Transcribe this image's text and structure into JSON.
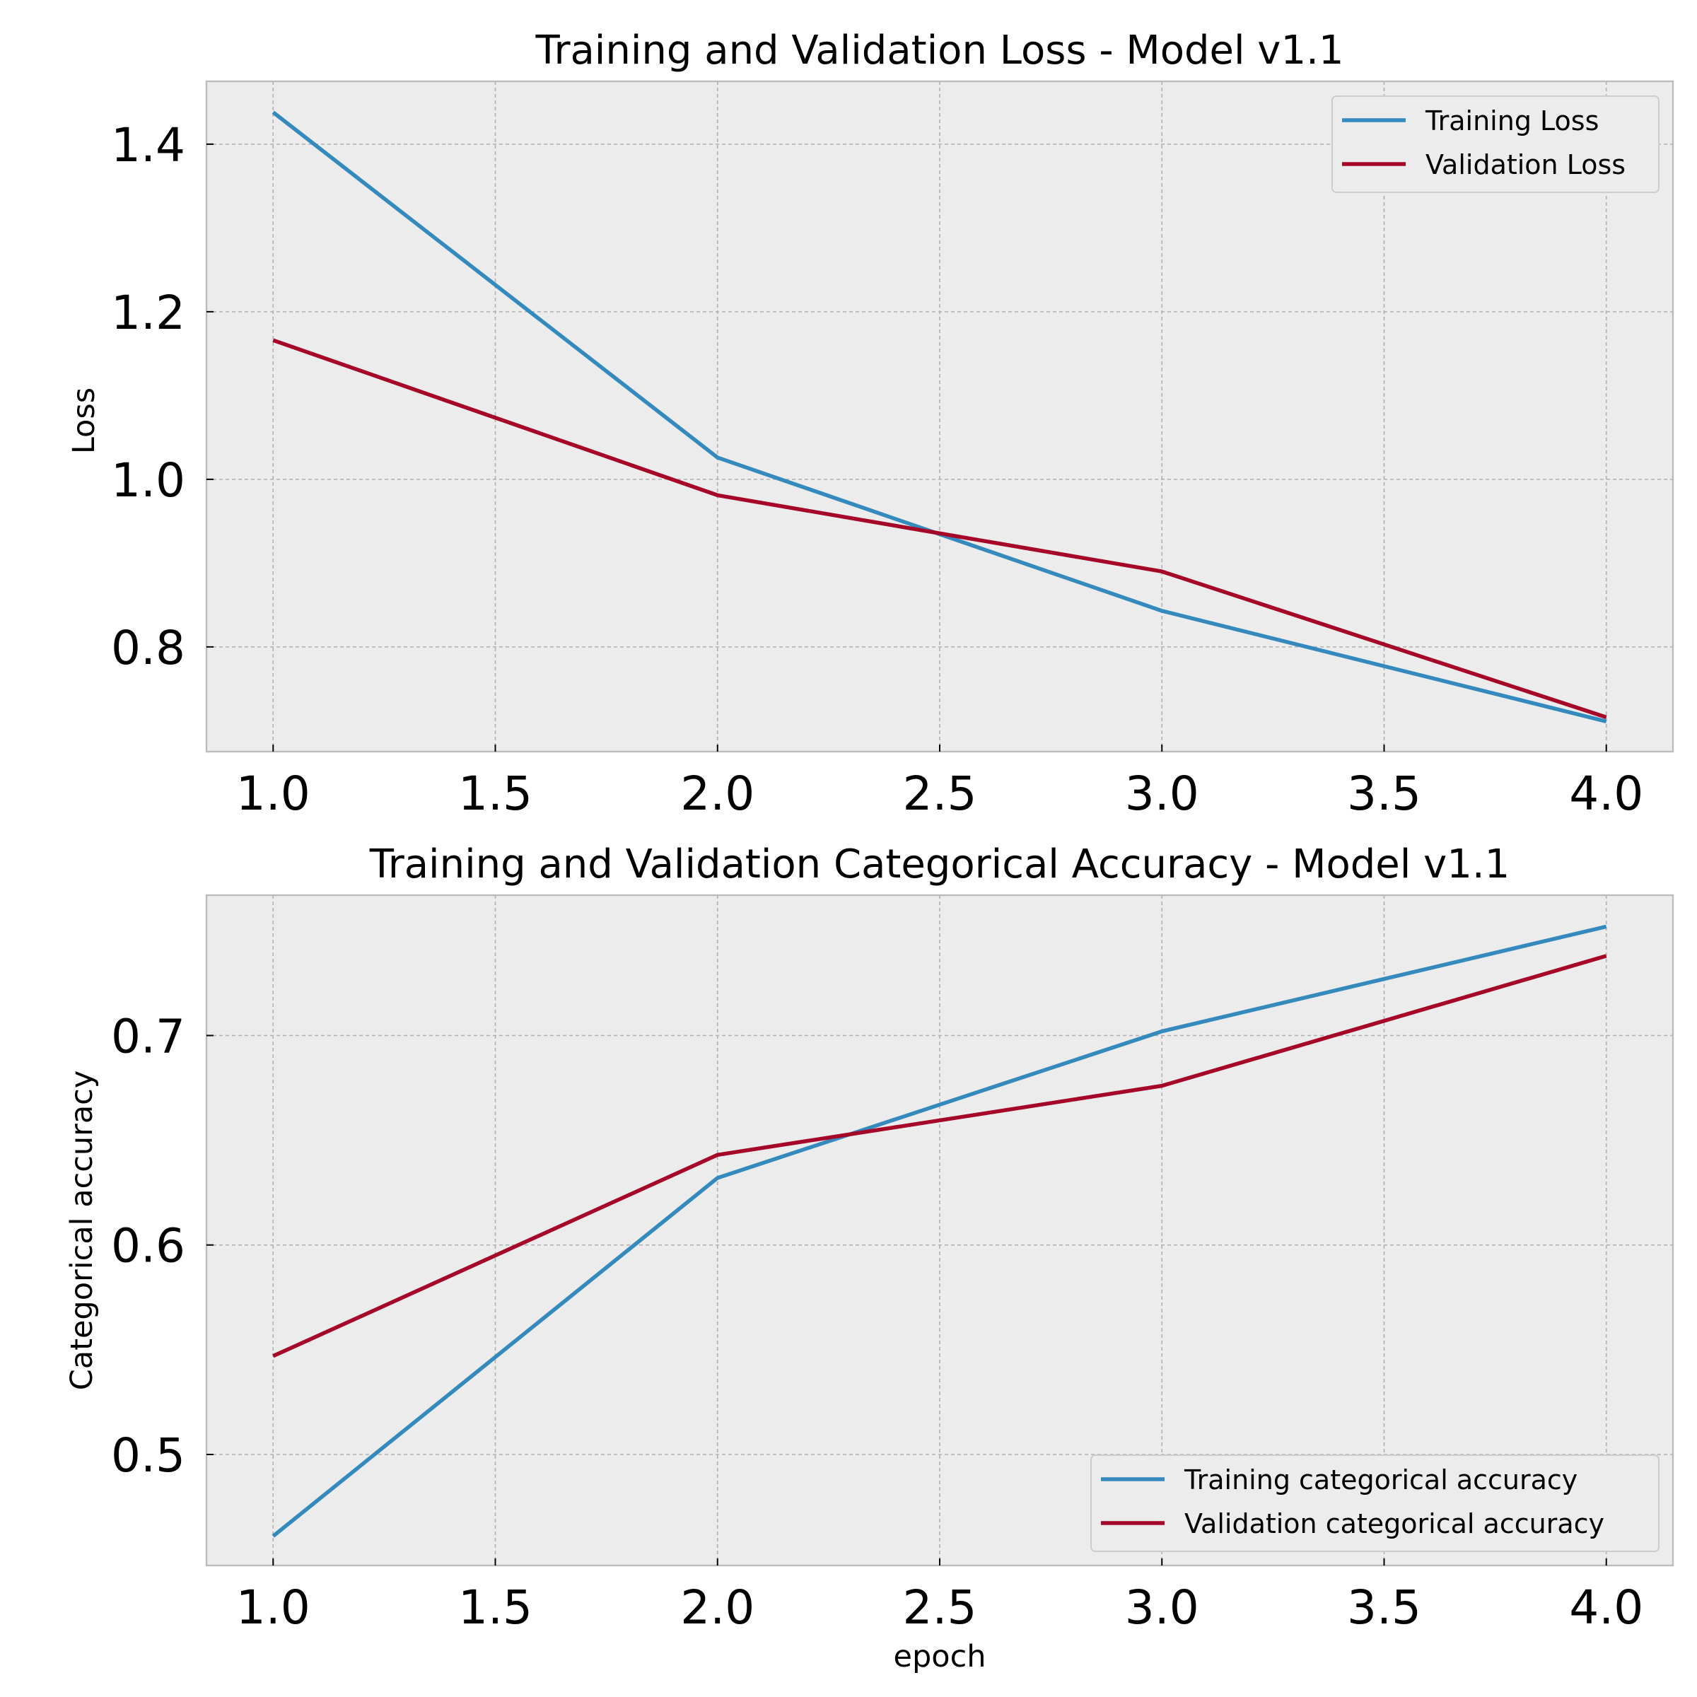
{
  "chart_data": [
    {
      "type": "line",
      "title": "Training and Validation Loss - Model v1.1",
      "xlabel": "",
      "ylabel": "Loss",
      "xlim": [
        0.85,
        4.15
      ],
      "ylim": [
        0.675,
        1.475
      ],
      "xticks": [
        1.0,
        1.5,
        2.0,
        2.5,
        3.0,
        3.5,
        4.0
      ],
      "xtick_labels": [
        "1.0",
        "1.5",
        "2.0",
        "2.5",
        "3.0",
        "3.5",
        "4.0"
      ],
      "yticks": [
        0.8,
        1.0,
        1.2,
        1.4
      ],
      "ytick_labels": [
        "0.8",
        "1.0",
        "1.2",
        "1.4"
      ],
      "grid": true,
      "legend": "top-right",
      "x": [
        1,
        2,
        3,
        4
      ],
      "series": [
        {
          "name": "Training Loss",
          "color": "#348abd",
          "values": [
            1.438,
            1.026,
            0.843,
            0.711
          ]
        },
        {
          "name": "Validation Loss",
          "color": "#a60628",
          "values": [
            1.166,
            0.981,
            0.89,
            0.716
          ]
        }
      ]
    },
    {
      "type": "line",
      "title": "Training and Validation Categorical Accuracy - Model v1.1",
      "xlabel": "epoch",
      "ylabel": "Categorical accuracy",
      "xlim": [
        0.85,
        4.15
      ],
      "ylim": [
        0.447,
        0.767
      ],
      "xticks": [
        1.0,
        1.5,
        2.0,
        2.5,
        3.0,
        3.5,
        4.0
      ],
      "xtick_labels": [
        "1.0",
        "1.5",
        "2.0",
        "2.5",
        "3.0",
        "3.5",
        "4.0"
      ],
      "yticks": [
        0.5,
        0.6,
        0.7
      ],
      "ytick_labels": [
        "0.5",
        "0.6",
        "0.7"
      ],
      "grid": true,
      "legend": "bottom-right",
      "x": [
        1,
        2,
        3,
        4
      ],
      "series": [
        {
          "name": "Training categorical accuracy",
          "color": "#348abd",
          "values": [
            0.461,
            0.632,
            0.702,
            0.752
          ]
        },
        {
          "name": "Validation categorical accuracy",
          "color": "#a60628",
          "values": [
            0.547,
            0.643,
            0.676,
            0.738
          ]
        }
      ]
    }
  ]
}
